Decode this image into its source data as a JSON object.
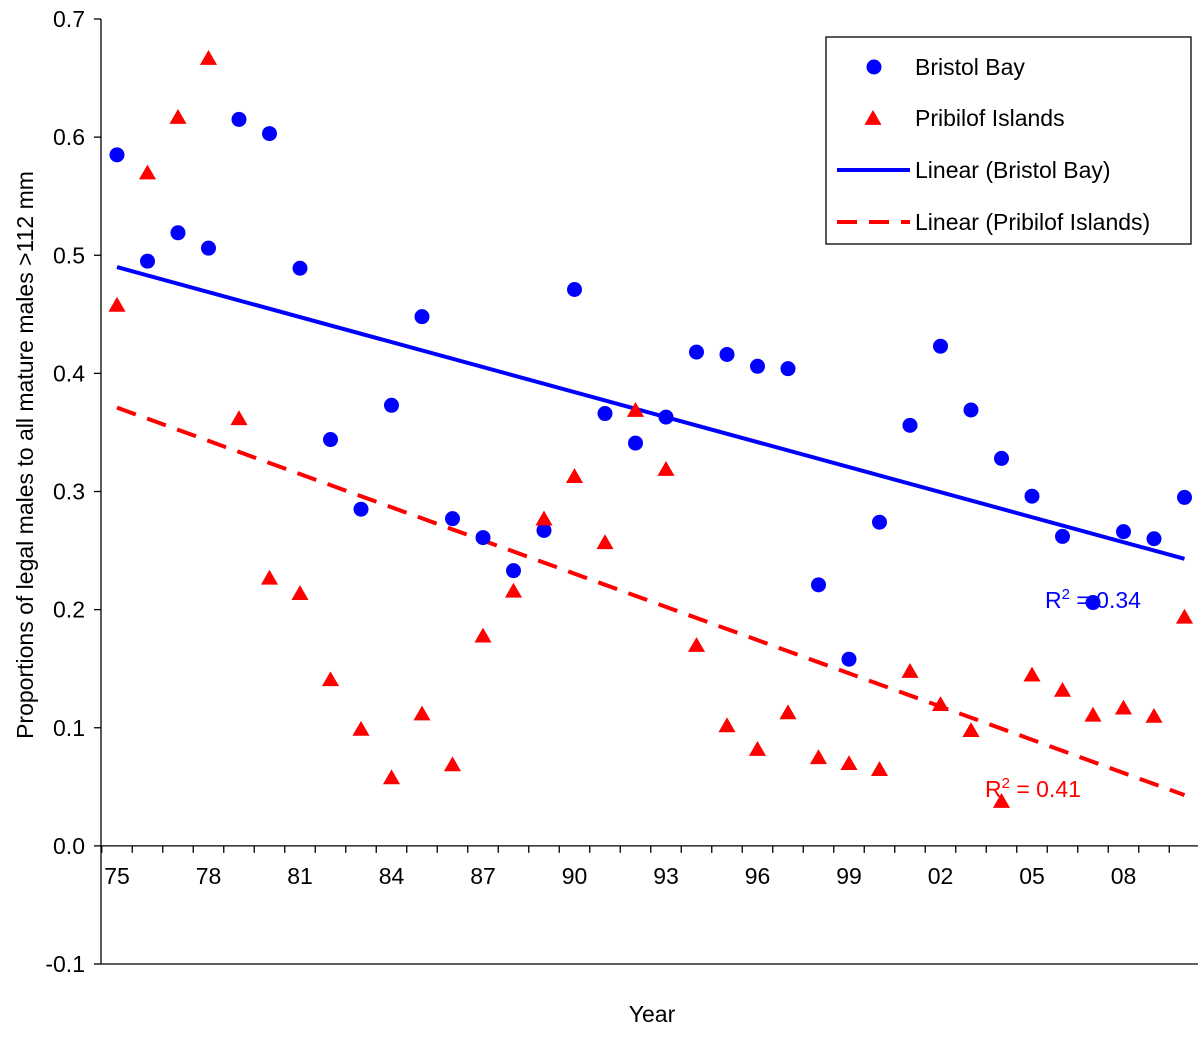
{
  "chart_data": {
    "type": "scatter",
    "xlabel": "Year",
    "ylabel": "Proportions of legal males to all mature males >112 mm",
    "ylim": [
      -0.1,
      0.7
    ],
    "yticks": [
      "-0.1",
      "0.0",
      "0.1",
      "0.2",
      "0.3",
      "0.4",
      "0.5",
      "0.6",
      "0.7"
    ],
    "xlim": [
      1975,
      2010
    ],
    "xticks": [
      {
        "year": 1975,
        "label": "75"
      },
      {
        "year": 1978,
        "label": "78"
      },
      {
        "year": 1981,
        "label": "81"
      },
      {
        "year": 1984,
        "label": "84"
      },
      {
        "year": 1987,
        "label": "87"
      },
      {
        "year": 1990,
        "label": "90"
      },
      {
        "year": 1993,
        "label": "93"
      },
      {
        "year": 1996,
        "label": "96"
      },
      {
        "year": 1999,
        "label": "99"
      },
      {
        "year": 2002,
        "label": "02"
      },
      {
        "year": 2005,
        "label": "05"
      },
      {
        "year": 2008,
        "label": "08"
      }
    ],
    "x": [
      1975,
      1976,
      1977,
      1978,
      1979,
      1980,
      1981,
      1982,
      1983,
      1984,
      1985,
      1986,
      1987,
      1988,
      1989,
      1990,
      1991,
      1992,
      1993,
      1994,
      1995,
      1996,
      1997,
      1998,
      1999,
      2000,
      2001,
      2002,
      2003,
      2004,
      2005,
      2006,
      2007,
      2008,
      2009,
      2010
    ],
    "series": [
      {
        "name": "Bristol Bay",
        "marker": "circle",
        "color": "#0000ff",
        "values": [
          0.585,
          0.495,
          0.519,
          0.506,
          0.615,
          0.603,
          0.489,
          0.344,
          0.285,
          0.373,
          0.448,
          0.277,
          0.261,
          0.233,
          0.267,
          0.471,
          0.366,
          0.341,
          0.363,
          0.418,
          0.416,
          0.406,
          0.404,
          0.221,
          0.158,
          0.274,
          0.356,
          0.423,
          0.369,
          0.328,
          0.296,
          0.262,
          0.206,
          0.266,
          0.26,
          0.295
        ]
      },
      {
        "name": "Pribilof Islands",
        "marker": "triangle",
        "color": "#ff0000",
        "values": [
          0.458,
          0.57,
          0.617,
          0.667,
          0.362,
          0.227,
          0.214,
          0.141,
          0.099,
          0.058,
          0.112,
          0.069,
          0.178,
          0.216,
          0.277,
          0.313,
          0.257,
          0.369,
          0.319,
          0.17,
          0.102,
          0.082,
          0.113,
          0.075,
          0.07,
          0.065,
          0.148,
          0.12,
          0.098,
          0.038,
          0.145,
          0.132,
          0.111,
          0.117,
          0.11,
          0.194
        ]
      }
    ],
    "trendlines": [
      {
        "name": "Linear (Bristol Bay)",
        "color": "#0000ff",
        "dash": "solid",
        "x": [
          1975,
          2010
        ],
        "y": [
          0.49,
          0.243
        ],
        "r2_label": "R",
        "r2_value": " = 0.34"
      },
      {
        "name": "Linear (Pribilof Islands)",
        "color": "#ff0000",
        "dash": "dashed",
        "x": [
          1975,
          2010
        ],
        "y": [
          0.371,
          0.043
        ],
        "r2_label": "R",
        "r2_value": " = 0.41"
      }
    ],
    "r2_superscript": "2",
    "grid": false,
    "legend_position": "top-right"
  }
}
